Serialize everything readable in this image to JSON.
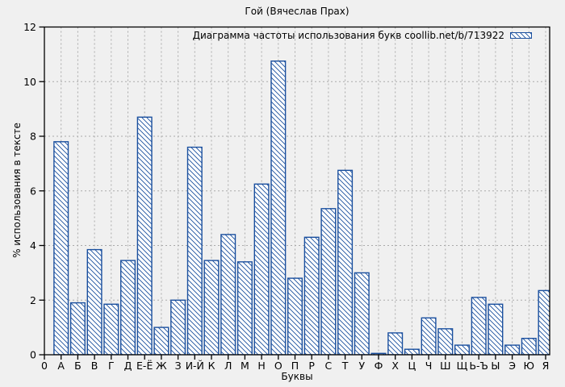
{
  "chart_data": {
    "type": "bar",
    "title": "Гой (Вячеслав Прах)",
    "legend": "Диаграмма частоты использования букв coollib.net/b/713922",
    "xlabel": "Буквы",
    "ylabel": "% использования в тексте",
    "x_origin_label": "0",
    "ylim": [
      0,
      12
    ],
    "yticks": [
      0,
      2,
      4,
      6,
      8,
      10,
      12
    ],
    "grid": true,
    "legend_position": "top-right-inside",
    "categories": [
      "А",
      "Б",
      "В",
      "Г",
      "Д",
      "Е-Ё",
      "Ж",
      "З",
      "И-Й",
      "К",
      "Л",
      "М",
      "Н",
      "О",
      "П",
      "Р",
      "С",
      "Т",
      "У",
      "Ф",
      "Х",
      "Ц",
      "Ч",
      "Ш",
      "Щ",
      "Ь-Ъ",
      "Ы",
      "Э",
      "Ю",
      "Я"
    ],
    "values": [
      7.8,
      1.9,
      3.85,
      1.85,
      3.45,
      8.7,
      1.0,
      2.0,
      7.6,
      3.45,
      4.4,
      3.4,
      6.25,
      10.75,
      2.8,
      4.3,
      5.35,
      6.75,
      3.0,
      0.05,
      0.8,
      0.2,
      1.35,
      0.95,
      0.35,
      2.1,
      1.85,
      0.35,
      0.6,
      2.35
    ],
    "colors": {
      "bar_outline": "#1a4f9e",
      "bar_fill": "#ffffff",
      "background": "#f0f0f0",
      "grid": "#aaaaaa",
      "axis": "#000000",
      "text": "#000000"
    }
  }
}
